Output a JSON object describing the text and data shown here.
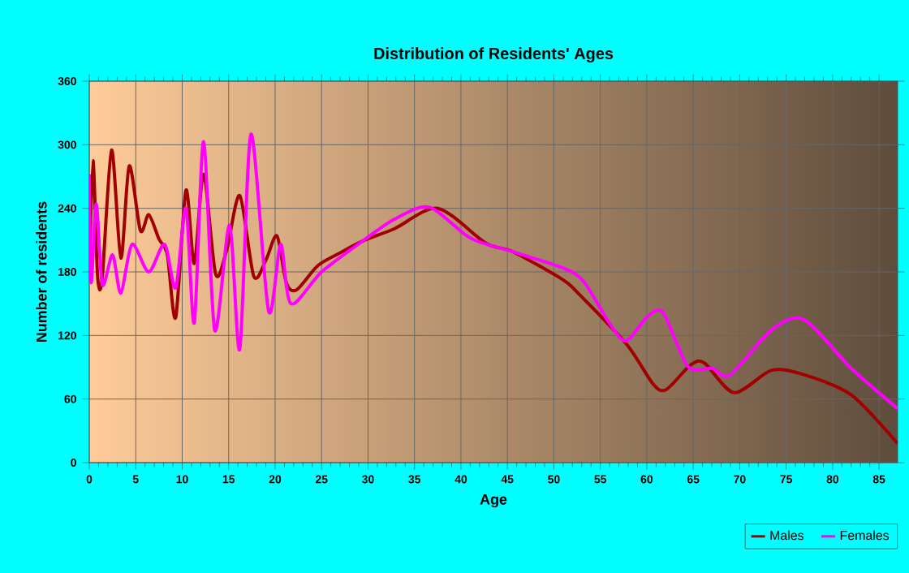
{
  "chart_data": {
    "type": "line",
    "title": "Distribution of Residents' Ages",
    "xlabel": "Age",
    "ylabel": "Number of residents",
    "xlim": [
      0,
      87
    ],
    "xticks": [
      0,
      5,
      10,
      15,
      20,
      25,
      30,
      35,
      40,
      45,
      50,
      55,
      60,
      65,
      70,
      75,
      80,
      85
    ],
    "ylim": [
      0,
      360
    ],
    "yticks": [
      0,
      60,
      120,
      180,
      240,
      300,
      360
    ],
    "grid": true,
    "legend": "bottom right",
    "series": [
      {
        "name": "Males",
        "color": "#a00000",
        "x": [
          0,
          0.4,
          0.9,
          1.4,
          2.4,
          3.4,
          4.3,
          5.5,
          6.4,
          7.5,
          8.4,
          9.3,
          10.4,
          11.3,
          12.3,
          13.6,
          14.8,
          16.2,
          17.7,
          19,
          20.2,
          21.2,
          22.3,
          24.6,
          27,
          29.4,
          32.9,
          37.5,
          42.7,
          45.6,
          50.9,
          52.6,
          57.8,
          60.7,
          62.1,
          64.7,
          66.2,
          69.4,
          73.4,
          76.9,
          82,
          87
        ],
        "values": [
          173,
          285,
          175,
          175,
          295,
          193,
          280,
          219,
          234,
          211,
          196,
          137,
          257,
          188,
          272,
          178,
          201,
          252,
          176,
          191,
          214,
          170,
          163,
          186,
          198,
          209,
          221,
          240,
          207,
          199,
          173,
          160,
          112,
          74,
          69,
          92,
          94,
          66,
          87,
          83,
          64,
          18
        ]
      },
      {
        "name": "Females",
        "color": "#ff00ff",
        "x": [
          0,
          0.2,
          0.75,
          1.4,
          2.5,
          3.4,
          4.6,
          6.4,
          8.1,
          9.3,
          10.4,
          11.3,
          12.3,
          13.5,
          15.1,
          16.2,
          17.4,
          19.3,
          20.6,
          21.7,
          25,
          29.4,
          32.9,
          36.6,
          41,
          45.6,
          50.9,
          53.2,
          56.1,
          57.8,
          60.1,
          61.8,
          64.4,
          67,
          69,
          73.4,
          76.9,
          82,
          87
        ],
        "values": [
          272,
          170,
          244,
          168,
          196,
          160,
          206,
          180,
          206,
          165,
          240,
          132,
          303,
          125,
          224,
          107,
          310,
          143,
          206,
          150,
          180,
          209,
          230,
          241,
          212,
          199,
          184,
          171,
          130,
          115,
          138,
          141,
          91,
          89,
          83,
          125,
          135,
          89,
          51
        ]
      }
    ]
  }
}
